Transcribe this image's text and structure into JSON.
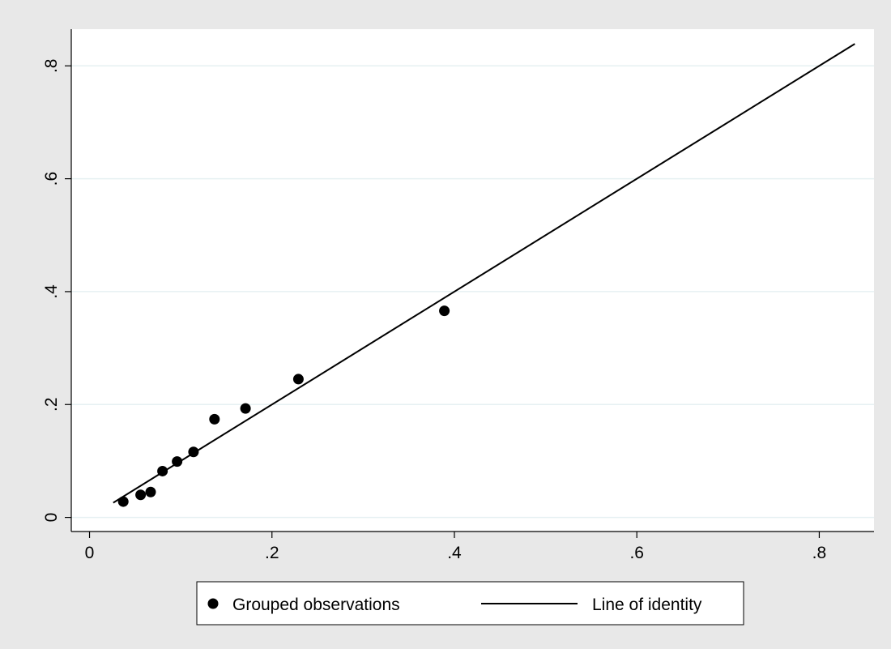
{
  "chart_data": {
    "type": "scatter",
    "title": "",
    "xlabel": "",
    "ylabel": "",
    "xlim": [
      -0.02,
      0.86
    ],
    "ylim": [
      -0.025,
      0.865
    ],
    "x_ticks": [
      {
        "value": 0,
        "label": "0"
      },
      {
        "value": 0.2,
        "label": ".2"
      },
      {
        "value": 0.4,
        "label": ".4"
      },
      {
        "value": 0.6,
        "label": ".6"
      },
      {
        "value": 0.8,
        "label": ".8"
      }
    ],
    "y_ticks": [
      {
        "value": 0,
        "label": "0"
      },
      {
        "value": 0.2,
        "label": ".2"
      },
      {
        "value": 0.4,
        "label": ".4"
      },
      {
        "value": 0.6,
        "label": ".6"
      },
      {
        "value": 0.8,
        "label": ".8"
      }
    ],
    "grid": "horizontal",
    "legend_position": "bottom",
    "series": [
      {
        "name": "Grouped observations",
        "kind": "scatter",
        "points": [
          {
            "x": 0.037,
            "y": 0.028
          },
          {
            "x": 0.056,
            "y": 0.04
          },
          {
            "x": 0.067,
            "y": 0.045
          },
          {
            "x": 0.08,
            "y": 0.082
          },
          {
            "x": 0.096,
            "y": 0.099
          },
          {
            "x": 0.114,
            "y": 0.116
          },
          {
            "x": 0.137,
            "y": 0.174
          },
          {
            "x": 0.171,
            "y": 0.193
          },
          {
            "x": 0.229,
            "y": 0.245
          },
          {
            "x": 0.389,
            "y": 0.366
          }
        ]
      },
      {
        "name": "Line of identity",
        "kind": "line",
        "points": [
          {
            "x": 0.026,
            "y": 0.026
          },
          {
            "x": 0.839,
            "y": 0.839
          }
        ]
      }
    ],
    "legend": {
      "markers_label": "Grouped observations",
      "line_label": "Line of identity"
    }
  }
}
